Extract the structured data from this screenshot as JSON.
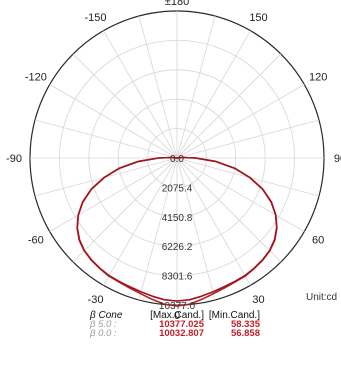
{
  "chart_data": {
    "type": "polar",
    "angle_labels": [
      {
        "angle": 0,
        "text": "0"
      },
      {
        "angle": 30,
        "text": "30"
      },
      {
        "angle": 60,
        "text": "60"
      },
      {
        "angle": 90,
        "text": "90"
      },
      {
        "angle": 120,
        "text": "120"
      },
      {
        "angle": 150,
        "text": "150"
      },
      {
        "angle": 180,
        "text": "±180"
      },
      {
        "angle": -150,
        "text": "-150"
      },
      {
        "angle": -120,
        "text": "-120"
      },
      {
        "angle": -90,
        "text": "-90"
      },
      {
        "angle": -60,
        "text": "-60"
      },
      {
        "angle": -30,
        "text": "-30"
      }
    ],
    "radial_labels": [
      "0.0",
      "2075.4",
      "4150.8",
      "6226.2",
      "8301.6",
      "10377.0"
    ],
    "rmax": 10377.0,
    "ring_count": 5,
    "spoke_step_deg": 15,
    "unit": "Unit:cd",
    "series": [
      {
        "beta": 5.0,
        "color": "#b22222",
        "points": [
          [
            0,
            10377
          ],
          [
            5,
            10290
          ],
          [
            10,
            10060
          ],
          [
            15,
            9850
          ],
          [
            20,
            9700
          ],
          [
            25,
            9600
          ],
          [
            30,
            9560
          ],
          [
            35,
            9450
          ],
          [
            40,
            9350
          ],
          [
            45,
            9200
          ],
          [
            50,
            8950
          ],
          [
            55,
            8550
          ],
          [
            60,
            8000
          ],
          [
            65,
            7300
          ],
          [
            70,
            6400
          ],
          [
            75,
            5300
          ],
          [
            80,
            4100
          ],
          [
            85,
            2700
          ],
          [
            90,
            1300
          ],
          [
            95,
            400
          ],
          [
            100,
            58
          ]
        ]
      },
      {
        "beta": 0.0,
        "color": "#a0141e",
        "points": [
          [
            0,
            10032
          ],
          [
            5,
            9980
          ],
          [
            10,
            9850
          ],
          [
            15,
            9720
          ],
          [
            20,
            9620
          ],
          [
            25,
            9560
          ],
          [
            30,
            9520
          ],
          [
            35,
            9430
          ],
          [
            40,
            9330
          ],
          [
            45,
            9180
          ],
          [
            50,
            8920
          ],
          [
            55,
            8530
          ],
          [
            60,
            7980
          ],
          [
            65,
            7280
          ],
          [
            70,
            6380
          ],
          [
            75,
            5280
          ],
          [
            80,
            4080
          ],
          [
            85,
            2680
          ],
          [
            90,
            1280
          ],
          [
            95,
            380
          ],
          [
            100,
            57
          ]
        ]
      }
    ]
  },
  "legend": {
    "headers": [
      "β Cone",
      "[Max.Cand.]",
      "[Min.Cand.]"
    ],
    "rows": [
      {
        "cone": "β 5.0 :",
        "max": "10377.025",
        "min": "58.335"
      },
      {
        "cone": "β 0.0 :",
        "max": "10032.807",
        "min": "56.858"
      }
    ]
  }
}
